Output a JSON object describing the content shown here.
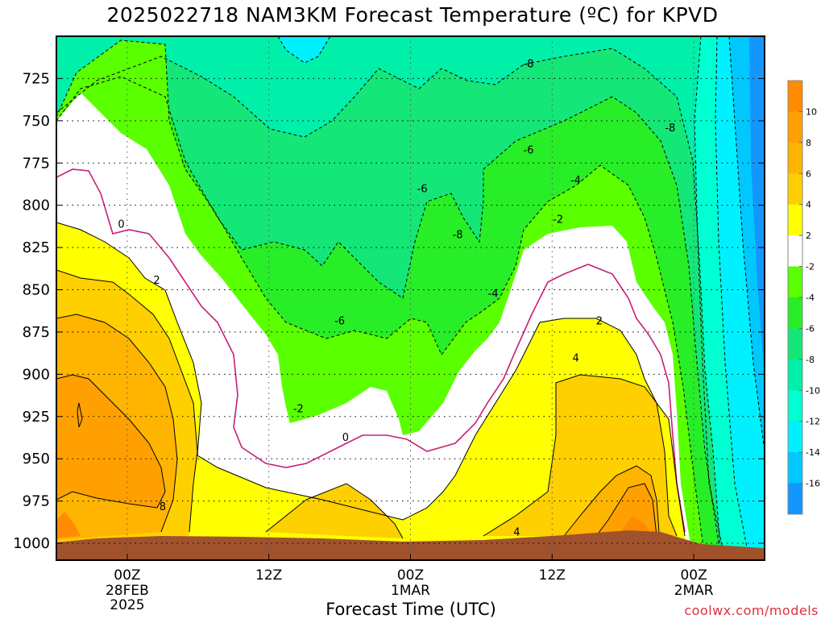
{
  "chart_data": {
    "type": "heatmap",
    "title": "2025022718 NAM3KM Forecast Temperature (ºC) for KPVD",
    "xlabel": "Forecast Time (UTC)",
    "ylabel": "",
    "x_ticks": [
      {
        "label": "00Z",
        "sub": [
          "28FEB",
          "2025"
        ],
        "hour": 6
      },
      {
        "label": "12Z",
        "sub": [],
        "hour": 18
      },
      {
        "label": "00Z",
        "sub": [
          "1MAR"
        ],
        "hour": 30
      },
      {
        "label": "12Z",
        "sub": [],
        "hour": 42
      },
      {
        "label": "00Z",
        "sub": [
          "2MAR"
        ],
        "hour": 54
      }
    ],
    "xlim_hours": [
      0,
      60
    ],
    "y_ticks": [
      725,
      750,
      775,
      800,
      825,
      850,
      875,
      900,
      925,
      950,
      975,
      1000
    ],
    "ylim": [
      1010,
      700
    ],
    "grid": true,
    "colorbar": {
      "labels": [
        "10",
        "8",
        "6",
        "4",
        "2",
        "-2",
        "-4",
        "-6",
        "-8",
        "-10",
        "-12",
        "-14",
        "-16"
      ],
      "bins": [
        {
          "from": 10,
          "to": 12,
          "color": "#ff8c00"
        },
        {
          "from": 8,
          "to": 10,
          "color": "#ffa000"
        },
        {
          "from": 6,
          "to": 8,
          "color": "#ffb400"
        },
        {
          "from": 4,
          "to": 6,
          "color": "#ffd000"
        },
        {
          "from": 2,
          "to": 4,
          "color": "#ffff00"
        },
        {
          "from": -2,
          "to": 2,
          "color": "#ffffff"
        },
        {
          "from": -4,
          "to": -2,
          "color": "#5aff00"
        },
        {
          "from": -6,
          "to": -4,
          "color": "#28ee28"
        },
        {
          "from": -8,
          "to": -6,
          "color": "#14e678"
        },
        {
          "from": -10,
          "to": -8,
          "color": "#00f0aa"
        },
        {
          "from": -12,
          "to": -10,
          "color": "#00ffd2"
        },
        {
          "from": -14,
          "to": -12,
          "color": "#00f0ff"
        },
        {
          "from": -16,
          "to": -14,
          "color": "#00c8ff"
        },
        {
          "from": -18,
          "to": -16,
          "color": "#1496ff"
        }
      ]
    },
    "contour_labels": [
      {
        "text": "0",
        "hour": 5.5,
        "p": 811
      },
      {
        "text": "2",
        "hour": 8.5,
        "p": 844
      },
      {
        "text": "-2",
        "hour": 20.5,
        "p": 920
      },
      {
        "text": "0",
        "hour": 24.5,
        "p": 937
      },
      {
        "text": "-6",
        "hour": 24,
        "p": 868
      },
      {
        "text": "-6",
        "hour": 31,
        "p": 790
      },
      {
        "text": "-8",
        "hour": 34,
        "p": 817
      },
      {
        "text": "-4",
        "hour": 37,
        "p": 852
      },
      {
        "text": "-8",
        "hour": 40,
        "p": 716
      },
      {
        "text": "-6",
        "hour": 40,
        "p": 767
      },
      {
        "text": "-2",
        "hour": 42.5,
        "p": 808
      },
      {
        "text": "-4",
        "hour": 44,
        "p": 785
      },
      {
        "text": "2",
        "hour": 46,
        "p": 868
      },
      {
        "text": "4",
        "hour": 44,
        "p": 890
      },
      {
        "text": "4",
        "hour": 39,
        "p": 993
      },
      {
        "text": "8",
        "hour": 9,
        "p": 978
      },
      {
        "text": "-8",
        "hour": 52,
        "p": 754
      }
    ],
    "terrain_color": "#a0522d",
    "credit": "coolwx.com/models"
  }
}
